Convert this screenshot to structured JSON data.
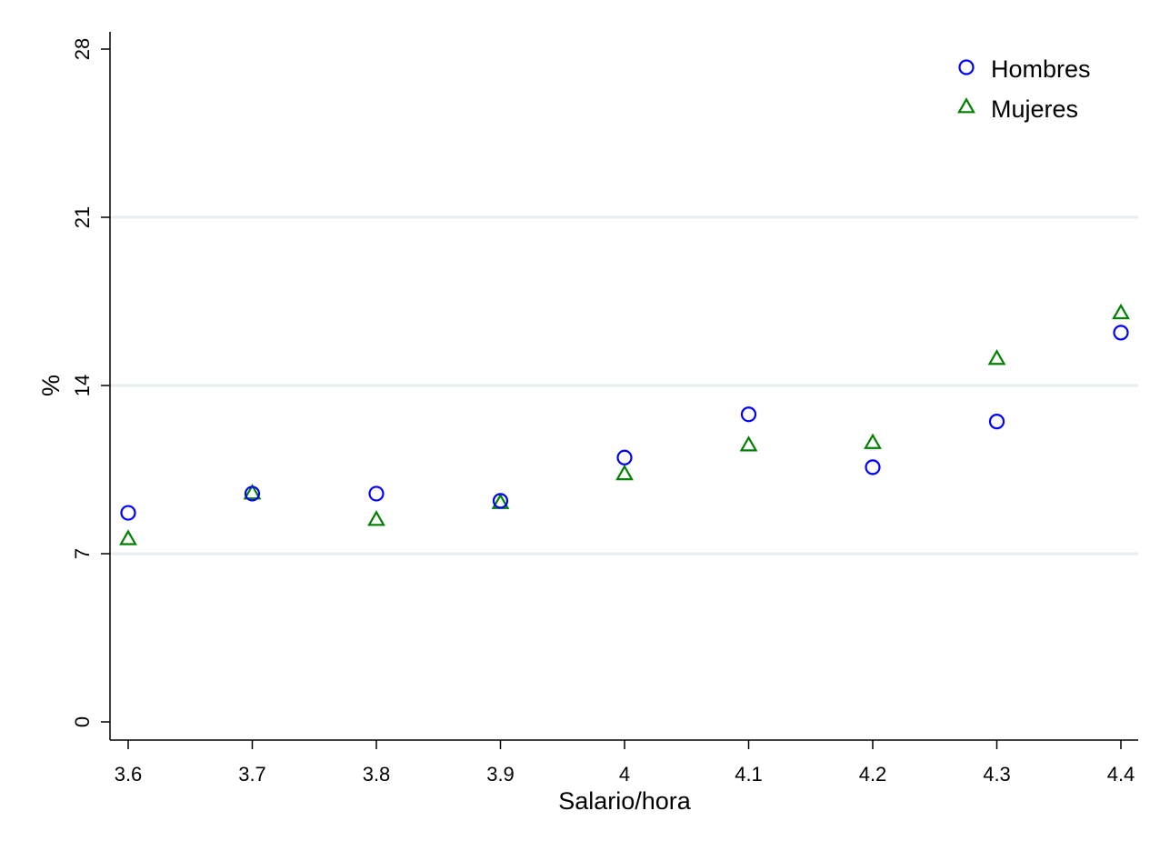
{
  "chart_data": {
    "type": "scatter",
    "title": "",
    "xlabel": "Salario/hora",
    "ylabel": "%",
    "x": [
      3.6,
      3.7,
      3.8,
      3.9,
      4,
      4.1,
      4.2,
      4.3,
      4.4
    ],
    "x_tick_labels": [
      "3.6",
      "3.7",
      "3.8",
      "3.9",
      "4",
      "4.1",
      "4.2",
      "4.3",
      "4.4"
    ],
    "y_ticks": [
      0,
      7,
      14,
      21,
      28
    ],
    "y_tick_labels": [
      "0",
      "7",
      "14",
      "21",
      "28"
    ],
    "xlim": [
      3.6,
      4.4
    ],
    "ylim": [
      0,
      28
    ],
    "grid": true,
    "legend_position": "top-right",
    "series": [
      {
        "name": "Hombres",
        "marker": "circle",
        "color": "#0000ff",
        "values": [
          8.7,
          9.5,
          9.5,
          9.2,
          11.0,
          12.8,
          10.6,
          12.5,
          16.2
        ]
      },
      {
        "name": "Mujeres",
        "marker": "triangle",
        "color": "#008000",
        "values": [
          7.6,
          9.5,
          8.4,
          9.1,
          10.3,
          11.5,
          11.6,
          15.1,
          17.0
        ]
      }
    ]
  }
}
